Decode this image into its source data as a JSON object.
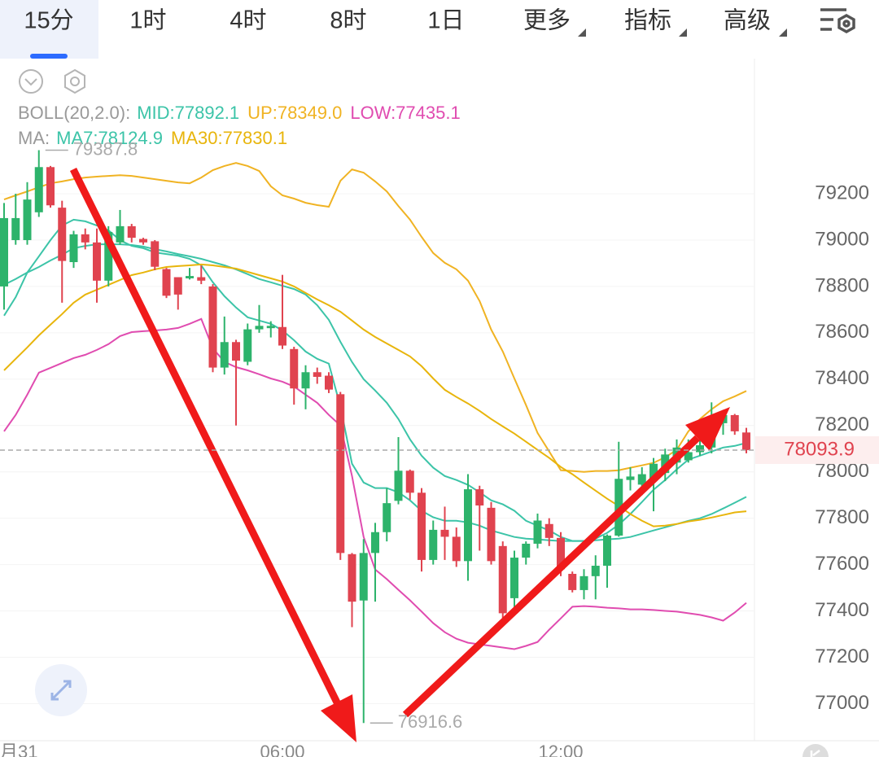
{
  "tabs": [
    "15分",
    "1时",
    "4时",
    "8时",
    "1日",
    "更多",
    "指标",
    "高级"
  ],
  "selected_tab": 0,
  "chart_data": {
    "type": "candlestick",
    "indicator_groups": [
      "BOLL(20,2.0):",
      "MA:"
    ],
    "categories": [
      "月31",
      null,
      null,
      null,
      null,
      null,
      null,
      null,
      null,
      null,
      null,
      null,
      null,
      null,
      null,
      null,
      null,
      null,
      null,
      null,
      null,
      null,
      null,
      null,
      "06:00",
      null,
      null,
      null,
      null,
      null,
      null,
      null,
      null,
      null,
      null,
      null,
      null,
      null,
      null,
      null,
      null,
      null,
      null,
      null,
      null,
      null,
      null,
      null,
      "12:00",
      null,
      null,
      null,
      null,
      null,
      null,
      null,
      null,
      null,
      null,
      null,
      null,
      null,
      null,
      null,
      null
    ],
    "open": [
      78800,
      79000,
      79000,
      79120,
      79315,
      79140,
      78905,
      79025,
      78990,
      78825,
      78990,
      79060,
      79005,
      78995,
      78875,
      78840,
      78835,
      78840,
      78800,
      78450,
      78560,
      78475,
      78615,
      78620,
      78625,
      78530,
      78360,
      78430,
      78415,
      78335,
      77645,
      77445,
      77650,
      77740,
      77875,
      78005,
      77910,
      77620,
      77750,
      77720,
      77615,
      77925,
      77845,
      77680,
      77455,
      77630,
      77690,
      77775,
      77715,
      77560,
      77490,
      77550,
      77595,
      77725,
      77965,
      77945,
      77965,
      77995,
      78040,
      78050,
      78085,
      78105,
      78210,
      78245,
      78170
    ],
    "high": [
      79160,
      79200,
      79250,
      79387.8,
      79320,
      79170,
      79040,
      79050,
      79050,
      79060,
      79130,
      79070,
      79010,
      79000,
      78880,
      78840,
      78880,
      78890,
      78810,
      78670,
      78570,
      78640,
      78720,
      78650,
      78850,
      78540,
      78460,
      78450,
      78430,
      78345,
      77650,
      77710,
      77780,
      77930,
      78150,
      78010,
      77930,
      77790,
      77850,
      77760,
      77990,
      77940,
      77870,
      77700,
      77660,
      77700,
      77820,
      77800,
      77740,
      77570,
      77580,
      77640,
      77730,
      78130,
      78020,
      78020,
      78060,
      78100,
      78140,
      78140,
      78180,
      78300,
      78260,
      78250,
      78190
    ],
    "low": [
      78700,
      78980,
      78980,
      79100,
      79140,
      78730,
      78880,
      78960,
      78730,
      78800,
      78980,
      78990,
      78980,
      78870,
      78750,
      78700,
      78830,
      78810,
      78430,
      78420,
      78200,
      78460,
      78600,
      78580,
      78530,
      78290,
      78270,
      78380,
      78340,
      77620,
      77330,
      76916.6,
      77440,
      77700,
      77860,
      77880,
      77570,
      77600,
      77620,
      77590,
      77530,
      77660,
      77600,
      77370,
      77380,
      77600,
      77670,
      77680,
      77550,
      77480,
      77450,
      77450,
      77500,
      77720,
      77920,
      77900,
      77830,
      77960,
      77990,
      78040,
      78070,
      78080,
      78160,
      78160,
      78080
    ],
    "close": [
      79095,
      79095,
      79175,
      79315,
      79150,
      78910,
      79025,
      78990,
      78825,
      79035,
      79060,
      79010,
      78990,
      78885,
      78760,
      78765,
      78845,
      78825,
      78450,
      78560,
      78480,
      78615,
      78630,
      78630,
      78545,
      78360,
      78430,
      78410,
      78355,
      77650,
      77440,
      77650,
      77740,
      77865,
      78005,
      77910,
      77620,
      77750,
      77720,
      77615,
      77925,
      77855,
      77615,
      77390,
      77630,
      77690,
      77790,
      77715,
      77580,
      77490,
      77550,
      77595,
      77725,
      77970,
      77980,
      77990,
      78035,
      78075,
      78105,
      78085,
      78115,
      78210,
      78245,
      78175,
      78093.9
    ],
    "up_color": "#2db36b",
    "down_color": "#e0434f",
    "lines": [
      {
        "name": "MID:77892.1",
        "group": 0,
        "color": "#3cc4a8",
        "values": [
          78807,
          78832,
          78860,
          78884,
          78912,
          78937,
          78965,
          78975,
          78982,
          78982,
          78982,
          78979,
          78972,
          78961,
          78951,
          78940,
          78930,
          78919,
          78905,
          78891,
          78874,
          78853,
          78832,
          78818,
          78803,
          78789,
          78765,
          78719,
          78656,
          78561,
          78474,
          78400,
          78351,
          78298,
          78228,
          78140,
          78070,
          78018,
          77982,
          77965,
          77944,
          77912,
          77877,
          77860,
          77832,
          77789,
          77768,
          77747,
          77719,
          77702,
          77702,
          77705,
          77709,
          77712,
          77719,
          77733,
          77747,
          77761,
          77775,
          77789,
          77800,
          77818,
          77842,
          77867,
          77892.1
        ]
      },
      {
        "name": "UP:78349.0",
        "group": 0,
        "color": "#f0b323",
        "values": [
          79175,
          79193,
          79210,
          79228,
          79245,
          79253,
          79263,
          79270,
          79274,
          79277,
          79280,
          79277,
          79270,
          79263,
          79256,
          79249,
          79245,
          79270,
          79302,
          79320,
          79333,
          79320,
          79298,
          79232,
          79193,
          79179,
          79161,
          79151,
          79144,
          79256,
          79305,
          79291,
          79253,
          79210,
          79147,
          79088,
          79014,
          78944,
          78902,
          78874,
          78825,
          78737,
          78614,
          78519,
          78403,
          78288,
          78168,
          78088,
          78007,
          78004,
          78000,
          78004,
          78004,
          78007,
          78018,
          78028,
          78039,
          78063,
          78095,
          78175,
          78228,
          78270,
          78305,
          78326,
          78349
        ]
      },
      {
        "name": "LOW:77435.1",
        "group": 0,
        "color": "#e04cb0",
        "values": [
          78175,
          78246,
          78333,
          78428,
          78449,
          78470,
          78491,
          78505,
          78526,
          78551,
          78586,
          78603,
          78607,
          78610,
          78614,
          78621,
          78639,
          78660,
          78533,
          78474,
          78452,
          78438,
          78421,
          78403,
          78389,
          78368,
          78333,
          78298,
          78246,
          78200,
          77982,
          77719,
          77579,
          77537,
          77491,
          77446,
          77397,
          77347,
          77308,
          77280,
          77263,
          77256,
          77249,
          77242,
          77235,
          77249,
          77266,
          77319,
          77368,
          77418,
          77421,
          77418,
          77414,
          77411,
          77407,
          77407,
          77404,
          77400,
          77397,
          77390,
          77383,
          77372,
          77358,
          77393,
          77435.1
        ]
      },
      {
        "name": "MA7:78124.9",
        "group": 1,
        "color": "#3cc4a8",
        "values": [
          78674,
          78754,
          78860,
          78930,
          79000,
          79063,
          79088,
          79081,
          79063,
          79042,
          79000,
          78975,
          78965,
          78947,
          78940,
          78933,
          78919,
          78891,
          78818,
          78758,
          78709,
          78667,
          78653,
          78639,
          78610,
          78568,
          78519,
          78488,
          78467,
          78281,
          78035,
          77954,
          77930,
          77930,
          77912,
          77877,
          77832,
          77804,
          77789,
          77789,
          77782,
          77768,
          77747,
          77733,
          77719,
          77712,
          77709,
          77705,
          77702,
          77702,
          77702,
          77712,
          77737,
          77772,
          77818,
          77870,
          77923,
          77965,
          78011,
          78053,
          78070,
          78088,
          78105,
          78112,
          78124.9
        ]
      },
      {
        "name": "MA30:77830.1",
        "group": 1,
        "color": "#e8b50c",
        "values": [
          78438,
          78488,
          78537,
          78589,
          78635,
          78681,
          78730,
          78765,
          78786,
          78807,
          78828,
          78849,
          78860,
          78874,
          78884,
          78888,
          78891,
          78895,
          78891,
          78884,
          78877,
          78863,
          78849,
          78835,
          78821,
          78800,
          78772,
          78744,
          78719,
          78691,
          78653,
          78614,
          78582,
          78554,
          78526,
          78498,
          78456,
          78403,
          78354,
          78323,
          78295,
          78263,
          78228,
          78196,
          78165,
          78130,
          78095,
          78060,
          78021,
          77990,
          77954,
          77919,
          77884,
          77853,
          77818,
          77789,
          77765,
          77768,
          77775,
          77786,
          77793,
          77803,
          77814,
          77825,
          77830.1
        ]
      }
    ],
    "ylim": [
      76840,
      79755
    ],
    "yticks": [
      77000,
      77200,
      77400,
      77600,
      77800,
      78000,
      78200,
      78400,
      78600,
      78800,
      79000,
      79200
    ],
    "grid": true
  }
}
